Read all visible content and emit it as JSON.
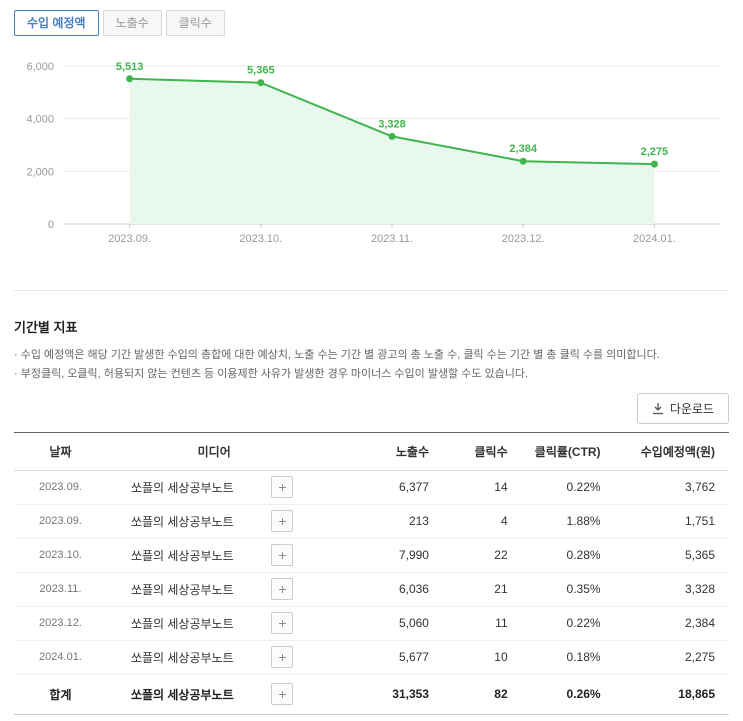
{
  "colors": {
    "accent_blue": "#4a7fc1",
    "chart_green": "#3eb54d",
    "chart_fill": "#e9f8ee",
    "axis_gray": "#999999"
  },
  "tabs": [
    {
      "key": "revenue",
      "label": "수입 예정액",
      "active": true
    },
    {
      "key": "impressions",
      "label": "노출수",
      "active": false
    },
    {
      "key": "clicks",
      "label": "클릭수",
      "active": false
    }
  ],
  "chart_data": {
    "type": "area",
    "title": "",
    "xlabel": "",
    "ylabel": "",
    "x": [
      "2023.09.",
      "2023.10.",
      "2023.11.",
      "2023.12.",
      "2024.01."
    ],
    "values": [
      5513,
      5365,
      3328,
      2384,
      2275
    ],
    "point_labels": [
      "5,513",
      "5,365",
      "3,328",
      "2,384",
      "2,275"
    ],
    "ylim": [
      0,
      6000
    ],
    "yticks": [
      0,
      2000,
      4000,
      6000
    ],
    "ytick_labels": [
      "0",
      "2,000",
      "4,000",
      "6,000"
    ],
    "grid": true,
    "legend_position": "none",
    "line_color": "#3eb54d",
    "fill_color": "#e9f8ee"
  },
  "section": {
    "title": "기간별 지표",
    "notes": [
      "· 수입 예정액은 해당 기간 발생한 수입의 총합에 대한 예상치, 노출 수는 기간 별 광고의 총 노출 수, 클릭 수는 기간 별 총 클릭 수를 의미합니다.",
      "· 부정클릭, 오클릭, 허용되지 않는 컨텐츠 등 이용제한 사유가 발생한 경우 마이너스 수입이 발생할 수도 있습니다."
    ],
    "download_label": "다운로드"
  },
  "table": {
    "headers": [
      "날짜",
      "미디어",
      "노출수",
      "클릭수",
      "클릭률(CTR)",
      "수입예정액(원)"
    ],
    "expand_button_label": "+",
    "rows": [
      {
        "date": "2023.09.",
        "media": "쏘플의 세상공부노트",
        "impressions": "6,377",
        "clicks": "14",
        "ctr": "0.22%",
        "revenue": "3,762"
      },
      {
        "date": "2023.09.",
        "media": "쏘플의 세상공부노트",
        "impressions": "213",
        "clicks": "4",
        "ctr": "1.88%",
        "revenue": "1,751"
      },
      {
        "date": "2023.10.",
        "media": "쏘플의 세상공부노트",
        "impressions": "7,990",
        "clicks": "22",
        "ctr": "0.28%",
        "revenue": "5,365"
      },
      {
        "date": "2023.11.",
        "media": "쏘플의 세상공부노트",
        "impressions": "6,036",
        "clicks": "21",
        "ctr": "0.35%",
        "revenue": "3,328"
      },
      {
        "date": "2023.12.",
        "media": "쏘플의 세상공부노트",
        "impressions": "5,060",
        "clicks": "11",
        "ctr": "0.22%",
        "revenue": "2,384"
      },
      {
        "date": "2024.01.",
        "media": "쏘플의 세상공부노트",
        "impressions": "5,677",
        "clicks": "10",
        "ctr": "0.18%",
        "revenue": "2,275"
      }
    ],
    "total": {
      "date": "합계",
      "media": "쏘플의 세상공부노트",
      "impressions": "31,353",
      "clicks": "82",
      "ctr": "0.26%",
      "revenue": "18,865"
    }
  }
}
